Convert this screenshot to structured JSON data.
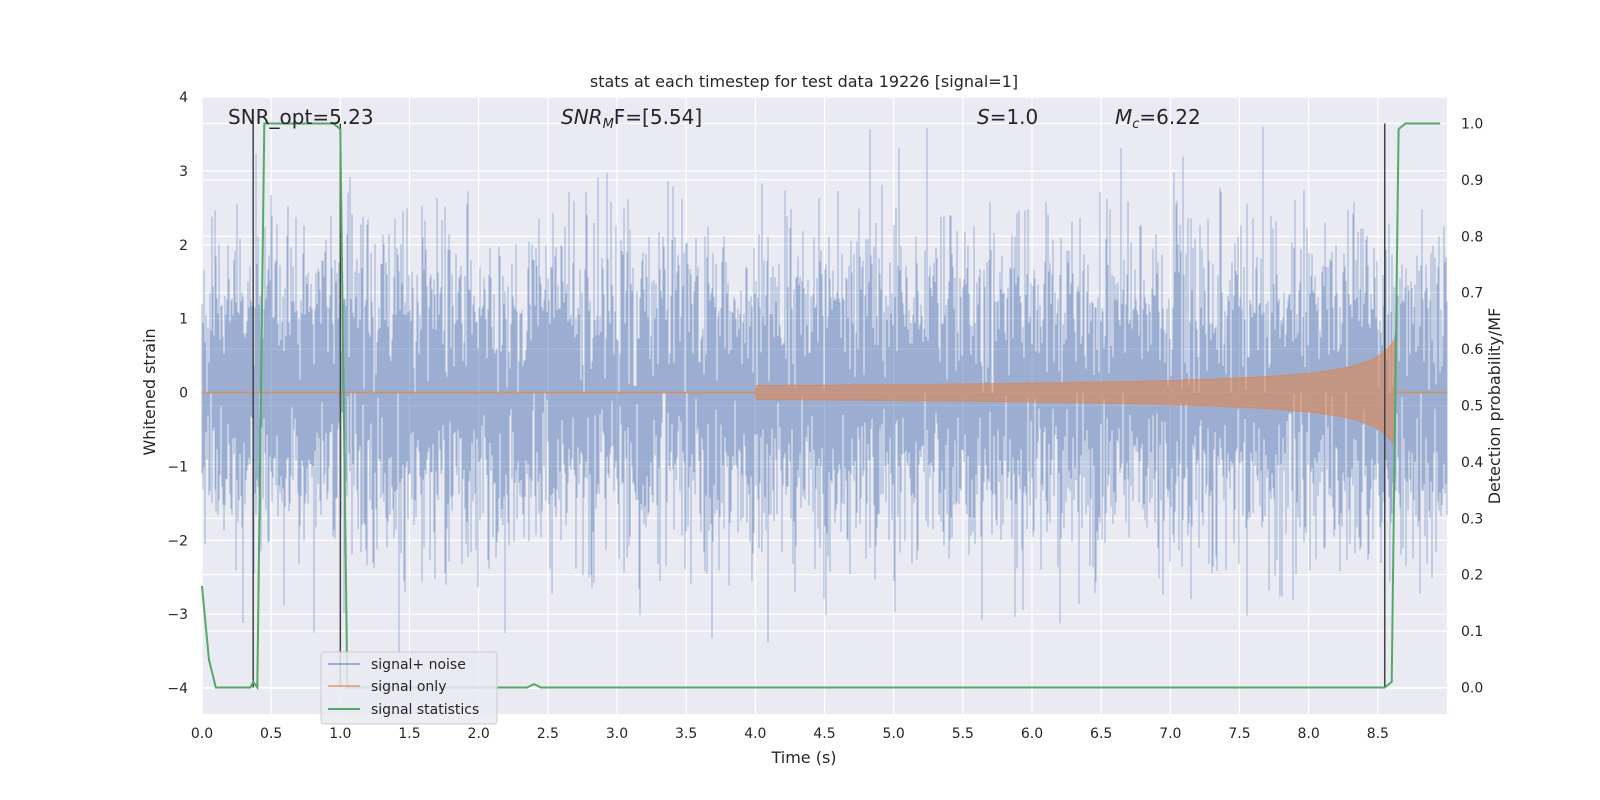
{
  "chart_data": {
    "type": "line",
    "title": "stats at each timestep for test data 19226 [signal=1]",
    "xlabel": "Time (s)",
    "ylabel": "Whitened strain",
    "y2label": "Detection probability/MF",
    "xlim": [
      0.0,
      9.0
    ],
    "ylim": [
      -4.35,
      4.0
    ],
    "y2lim": [
      -0.047,
      1.047
    ],
    "xticks": [
      "0.0",
      "0.5",
      "1.0",
      "1.5",
      "2.0",
      "2.5",
      "3.0",
      "3.5",
      "4.0",
      "4.5",
      "5.0",
      "5.5",
      "6.0",
      "6.5",
      "7.0",
      "7.5",
      "8.0",
      "8.5"
    ],
    "yticks": [
      "4",
      "3",
      "2",
      "1",
      "0",
      "−1",
      "−2",
      "−3",
      "−4"
    ],
    "y2ticks": [
      "1.0",
      "0.9",
      "0.8",
      "0.7",
      "0.6",
      "0.5",
      "0.4",
      "0.3",
      "0.2",
      "0.1",
      "0.0"
    ],
    "grid": true,
    "legend_position": "lower-left",
    "annotations": {
      "snr_opt": "SNR_opt=5.23",
      "snr_mf": "SNR",
      "snr_mf_sub": "M",
      "snr_mf_tail": "F=[5.54]",
      "s": "S",
      "s_tail": "=1.0",
      "mc": "M",
      "mc_sub": "c",
      "mc_tail": "=6.22"
    },
    "vertical_lines_x": [
      0.37,
      1.0,
      8.55
    ],
    "series": [
      {
        "name": "signal+ noise",
        "color": "#4c72b0",
        "description_values": "gaussian-like noise, approx range -4 to 3.6",
        "noise_std": 1.0
      },
      {
        "name": "signal only",
        "color": "#dd8452",
        "chirp_start": 4.0,
        "chirp_end": 8.62,
        "peak_amplitude": 0.72
      },
      {
        "name": "signal statistics",
        "color": "#55a868",
        "x": [
          0.0,
          0.05,
          0.1,
          0.15,
          0.2,
          0.25,
          0.3,
          0.35,
          0.37,
          0.4,
          0.45,
          0.5,
          0.55,
          0.6,
          0.65,
          0.7,
          0.75,
          0.8,
          0.85,
          0.9,
          0.95,
          1.0,
          1.05,
          1.1,
          1.15,
          1.2,
          1.3,
          1.5,
          1.7,
          1.9,
          2.1,
          2.3,
          2.35,
          2.4,
          2.45,
          2.5,
          3.0,
          4.0,
          5.0,
          6.0,
          7.0,
          8.0,
          8.4,
          8.5,
          8.55,
          8.6,
          8.65,
          8.7,
          8.8,
          8.95
        ],
        "y": [
          0.18,
          0.05,
          0.0,
          0.0,
          0.0,
          0.0,
          0.0,
          0.0,
          0.01,
          0.0,
          1.0,
          1.0,
          1.0,
          1.0,
          1.0,
          1.0,
          1.0,
          1.0,
          1.0,
          1.0,
          1.0,
          0.99,
          0.0,
          0.0,
          0.0,
          0.0,
          0.0,
          0.0,
          0.0,
          0.0,
          0.0,
          0.0,
          0.0,
          0.006,
          0.0,
          0.0,
          0.0,
          0.0,
          0.0,
          0.0,
          0.0,
          0.0,
          0.0,
          0.0,
          0.0,
          0.01,
          0.99,
          1.0,
          1.0,
          1.0
        ]
      }
    ]
  }
}
